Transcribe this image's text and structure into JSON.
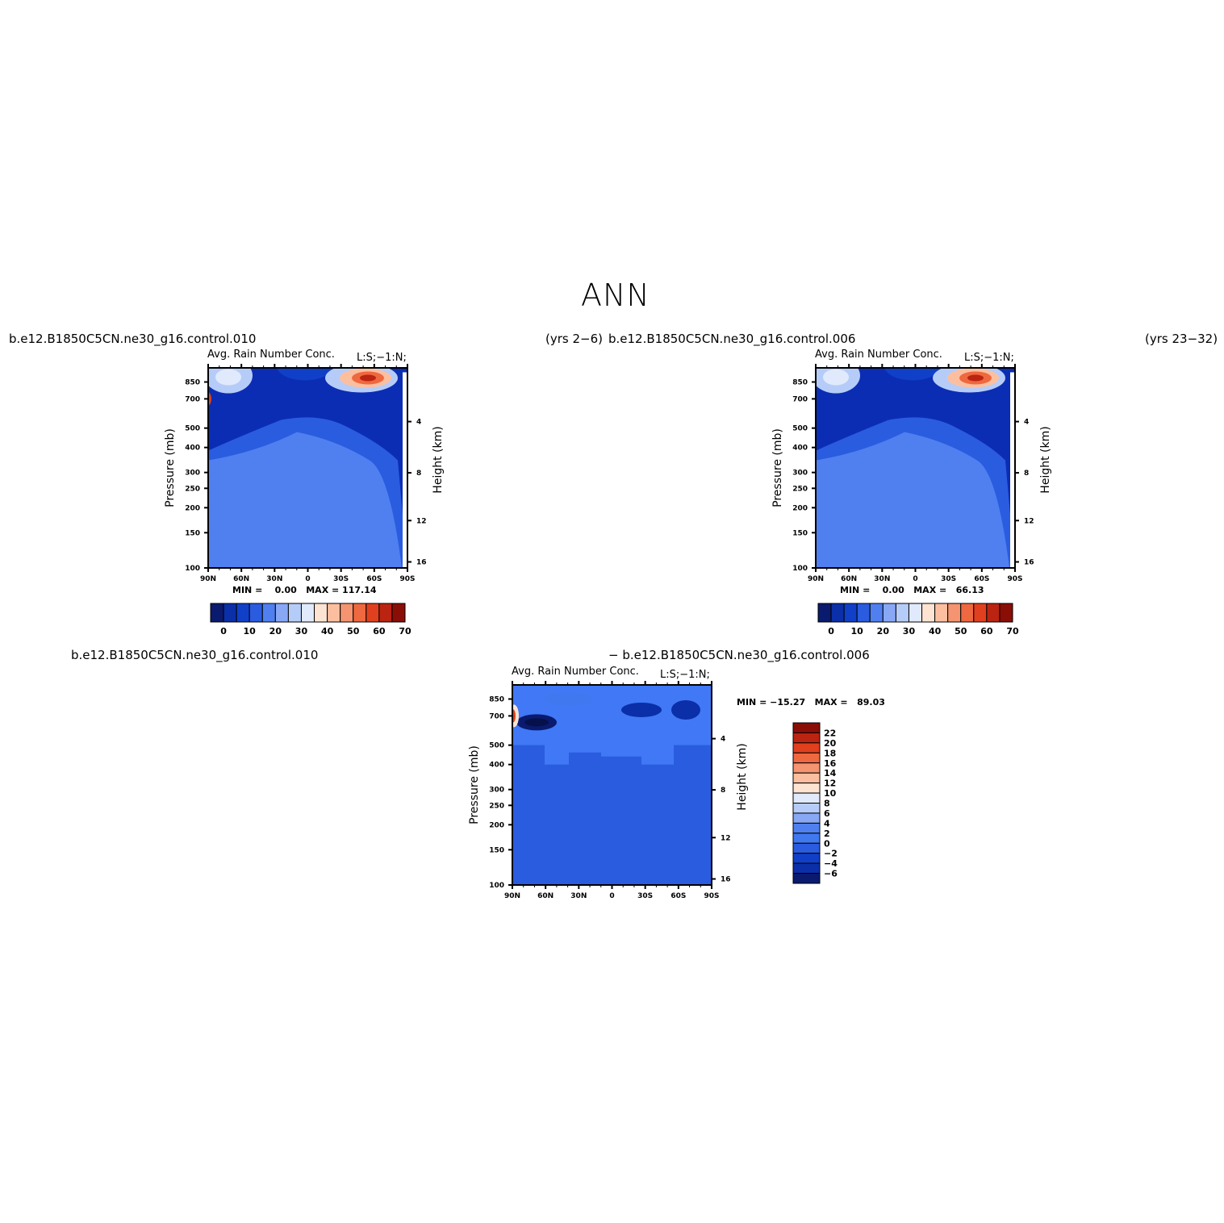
{
  "page": {
    "title": "ANN"
  },
  "panels": {
    "top_left": {
      "case_left": "b.e12.B1850C5CN.ne30_g16.control.010",
      "case_right": "(yrs 2−6)",
      "plot_title": "Avg. Rain Number Conc.",
      "plot_tag": "L:S;−1:N;",
      "minmax": "MIN =    0.00   MAX = 117.14"
    },
    "top_right": {
      "case_left": "b.e12.B1850C5CN.ne30_g16.control.006",
      "case_right": "(yrs 23−32)",
      "plot_title": "Avg. Rain Number Conc.",
      "plot_tag": "L:S;−1:N;",
      "minmax": "MIN =    0.00   MAX =   66.13"
    },
    "bottom": {
      "case_left": "b.e12.B1850C5CN.ne30_g16.control.010",
      "case_right": "− b.e12.B1850C5CN.ne30_g16.control.006",
      "plot_title": "Avg. Rain Number Conc.",
      "plot_tag": "L:S;−1:N;",
      "minmax": "MIN = −15.27   MAX =   89.03"
    }
  },
  "chart_data": [
    {
      "type": "heatmap",
      "panel": "top_left",
      "title": "Avg. Rain Number Conc.",
      "xlabel": "",
      "ylabel": "Pressure (mb)",
      "ylabel_right": "Height (km)",
      "x_ticks": [
        "90N",
        "60N",
        "30N",
        "0",
        "30S",
        "60S",
        "90S"
      ],
      "y_ticks": [
        "100",
        "150",
        "200",
        "250",
        "300",
        "400",
        "500",
        "700",
        "850"
      ],
      "y_right_ticks": [
        "16",
        "12",
        "8",
        "4"
      ],
      "ylim_pressure": [
        1000,
        100
      ],
      "colorbar_ticks": [
        "0",
        "10",
        "20",
        "30",
        "40",
        "50",
        "60",
        "70"
      ],
      "colorbar_colors": [
        "#0a1a6e",
        "#0a2fa8",
        "#1040c8",
        "#2a5ce0",
        "#5080f0",
        "#88a8f5",
        "#b6ccf8",
        "#e0eafc",
        "#fde4d2",
        "#fbbfa0",
        "#f59470",
        "#ee6840",
        "#e0401e",
        "#bb2410",
        "#8a0e06"
      ],
      "background_color": "#0b2db4",
      "hotspot": {
        "lat": "50S",
        "pressure_mb": 850,
        "color": "#e0401e"
      },
      "min": 0.0,
      "max": 117.14
    },
    {
      "type": "heatmap",
      "panel": "top_right",
      "title": "Avg. Rain Number Conc.",
      "xlabel": "",
      "ylabel": "Pressure (mb)",
      "ylabel_right": "Height (km)",
      "x_ticks": [
        "90N",
        "60N",
        "30N",
        "0",
        "30S",
        "60S",
        "90S"
      ],
      "y_ticks": [
        "100",
        "150",
        "200",
        "250",
        "300",
        "400",
        "500",
        "700",
        "850"
      ],
      "y_right_ticks": [
        "16",
        "12",
        "8",
        "4"
      ],
      "ylim_pressure": [
        1000,
        100
      ],
      "colorbar_ticks": [
        "0",
        "10",
        "20",
        "30",
        "40",
        "50",
        "60",
        "70"
      ],
      "colorbar_colors": [
        "#0a1a6e",
        "#0a2fa8",
        "#1040c8",
        "#2a5ce0",
        "#5080f0",
        "#88a8f5",
        "#b6ccf8",
        "#e0eafc",
        "#fde4d2",
        "#fbbfa0",
        "#f59470",
        "#ee6840",
        "#e0401e",
        "#bb2410",
        "#8a0e06"
      ],
      "background_color": "#0b2db4",
      "hotspot": {
        "lat": "50S",
        "pressure_mb": 850,
        "color": "#e0401e"
      },
      "min": 0.0,
      "max": 66.13
    },
    {
      "type": "heatmap",
      "panel": "bottom",
      "title": "Avg. Rain Number Conc.",
      "xlabel": "",
      "ylabel": "Pressure (mb)",
      "ylabel_right": "Height (km)",
      "x_ticks": [
        "90N",
        "60N",
        "30N",
        "0",
        "30S",
        "60S",
        "90S"
      ],
      "y_ticks": [
        "100",
        "150",
        "200",
        "250",
        "300",
        "400",
        "500",
        "700",
        "850"
      ],
      "y_right_ticks": [
        "16",
        "12",
        "8",
        "4"
      ],
      "ylim_pressure": [
        1000,
        100
      ],
      "colorbar_ticks": [
        "22",
        "20",
        "18",
        "16",
        "14",
        "12",
        "10",
        "8",
        "6",
        "4",
        "2",
        "0",
        "−2",
        "−4",
        "−6"
      ],
      "colorbar_colors": [
        "#8a0e06",
        "#bb2410",
        "#e0401e",
        "#ee6840",
        "#f59470",
        "#fbbfa0",
        "#fde4d2",
        "#e0eafc",
        "#b6ccf8",
        "#88a8f5",
        "#5080f0",
        "#4078f0",
        "#2a5ce0",
        "#1040c8",
        "#0a2fa8",
        "#0a1a6e"
      ],
      "background_color": "#4078f5",
      "hotspot": {
        "lat": "90N",
        "pressure_mb": 700,
        "color": "#e0401e"
      },
      "min": -15.27,
      "max": 89.03
    }
  ]
}
